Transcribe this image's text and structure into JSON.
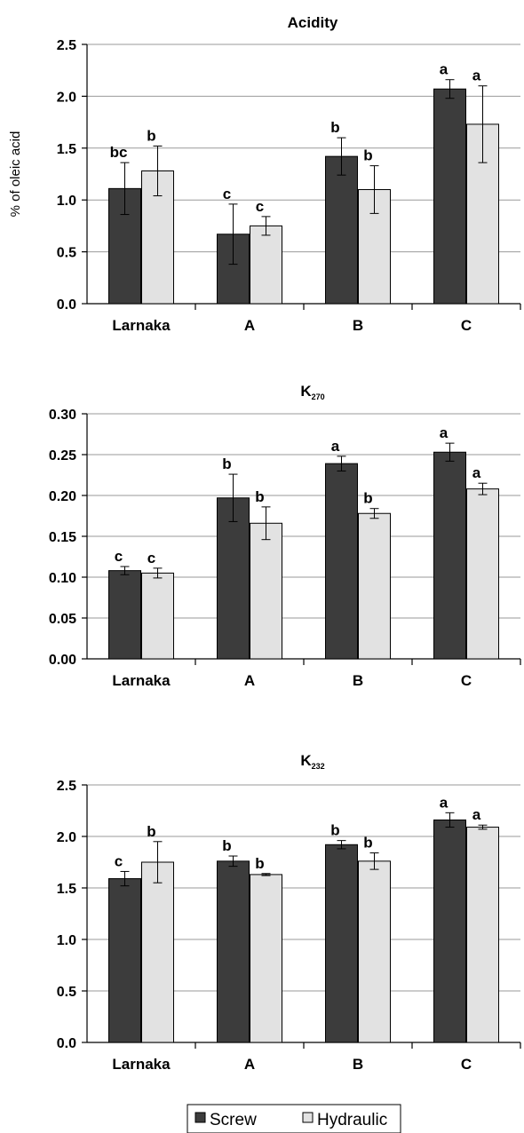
{
  "chart_data": [
    {
      "type": "bar",
      "title": "Acidity",
      "title_sub": "",
      "ylabel": "% of oleic acid",
      "categories": [
        "Larnaka",
        "A",
        "B",
        "C"
      ],
      "ylim": [
        0,
        2.5
      ],
      "yticks": [
        "0.0",
        "0.5",
        "1.0",
        "1.5",
        "2.0",
        "2.5"
      ],
      "grid": true,
      "series": [
        {
          "name": "Screw",
          "values": [
            1.11,
            0.67,
            1.42,
            2.07
          ],
          "errors": [
            0.25,
            0.29,
            0.18,
            0.09
          ],
          "letters": [
            "bc",
            "c",
            "b",
            "a"
          ]
        },
        {
          "name": "Hydraulic",
          "values": [
            1.28,
            0.75,
            1.1,
            1.73
          ],
          "errors": [
            0.24,
            0.09,
            0.23,
            0.37
          ],
          "letters": [
            "b",
            "c",
            "b",
            "a"
          ]
        }
      ]
    },
    {
      "type": "bar",
      "title": "K",
      "title_sub": "270",
      "ylabel": "",
      "categories": [
        "Larnaka",
        "A",
        "B",
        "C"
      ],
      "ylim": [
        0,
        0.3
      ],
      "yticks": [
        "0.00",
        "0.05",
        "0.10",
        "0.15",
        "0.20",
        "0.25",
        "0.30"
      ],
      "grid": true,
      "series": [
        {
          "name": "Screw",
          "values": [
            0.108,
            0.197,
            0.239,
            0.253
          ],
          "errors": [
            0.005,
            0.029,
            0.009,
            0.011
          ],
          "letters": [
            "c",
            "b",
            "a",
            "a"
          ]
        },
        {
          "name": "Hydraulic",
          "values": [
            0.105,
            0.166,
            0.178,
            0.208
          ],
          "errors": [
            0.006,
            0.02,
            0.006,
            0.007
          ],
          "letters": [
            "c",
            "b",
            "b",
            "a"
          ]
        }
      ]
    },
    {
      "type": "bar",
      "title": "K",
      "title_sub": "232",
      "ylabel": "",
      "categories": [
        "Larnaka",
        "A",
        "B",
        "C"
      ],
      "ylim": [
        0,
        2.5
      ],
      "yticks": [
        "0.0",
        "0.5",
        "1.0",
        "1.5",
        "2.0",
        "2.5"
      ],
      "grid": true,
      "series": [
        {
          "name": "Screw",
          "values": [
            1.59,
            1.76,
            1.92,
            2.16
          ],
          "errors": [
            0.07,
            0.05,
            0.04,
            0.07
          ],
          "letters": [
            "c",
            "b",
            "b",
            "a"
          ]
        },
        {
          "name": "Hydraulic",
          "values": [
            1.75,
            1.63,
            1.76,
            2.09
          ],
          "errors": [
            0.2,
            0.01,
            0.08,
            0.02
          ],
          "letters": [
            "b",
            "b",
            "b",
            "a"
          ]
        }
      ]
    }
  ],
  "legend": {
    "position": "bottom",
    "items": [
      {
        "label": "Screw",
        "color": "#3c3c3c"
      },
      {
        "label": "Hydraulic",
        "color": "#e2e2e2"
      }
    ]
  },
  "colors": {
    "screw": "#3c3c3c",
    "hydraulic": "#e2e2e2",
    "grid": "#9a9a9a"
  }
}
